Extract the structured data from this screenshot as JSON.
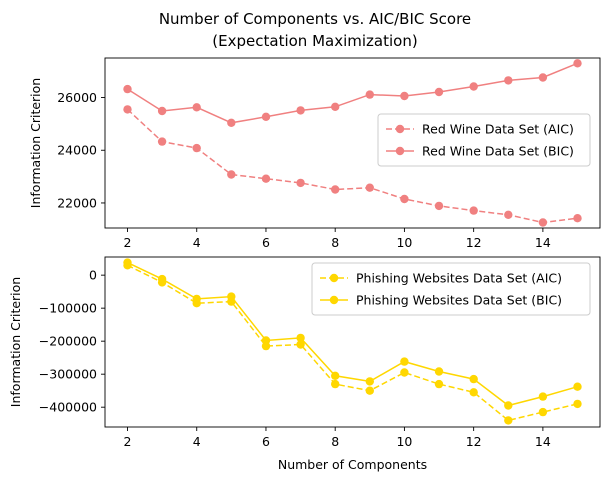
{
  "title": "Number of Components vs. AIC/BIC Score\n(Expectation Maximization)",
  "title_lines": [
    "Number of Components vs. AIC/BIC Score",
    "(Expectation Maximization)"
  ],
  "chart_data": [
    {
      "type": "line",
      "ylabel": "Information Criterion",
      "xlabel": "",
      "xlim": [
        1.35,
        15.65
      ],
      "ylim": [
        21050,
        27500
      ],
      "x_ticks": [
        2,
        4,
        6,
        8,
        10,
        12,
        14
      ],
      "y_ticks": [
        22000,
        24000,
        26000
      ],
      "y_tick_labels": [
        "22000",
        "24000",
        "26000"
      ],
      "legend_position": "center-right",
      "grid": false,
      "x": [
        2,
        3,
        4,
        5,
        6,
        7,
        8,
        9,
        10,
        11,
        12,
        13,
        14,
        15
      ],
      "series": [
        {
          "name": "Red Wine Data Set (AIC)",
          "color": "#f08080",
          "line_style": "dashed",
          "marker": "circle",
          "values": [
            25550,
            24330,
            24080,
            23080,
            22920,
            22760,
            22510,
            22580,
            22150,
            21890,
            21710,
            21550,
            21260,
            21420
          ]
        },
        {
          "name": "Red Wine Data Set (BIC)",
          "color": "#f08080",
          "line_style": "solid",
          "marker": "circle",
          "values": [
            26320,
            25490,
            25630,
            25040,
            25270,
            25510,
            25650,
            26110,
            26060,
            26210,
            26420,
            26650,
            26760,
            27300
          ]
        }
      ]
    },
    {
      "type": "line",
      "ylabel": "Information Criterion",
      "xlabel": "Number of Components",
      "xlim": [
        1.35,
        15.65
      ],
      "ylim": [
        -460000,
        55000
      ],
      "x_ticks": [
        2,
        4,
        6,
        8,
        10,
        12,
        14
      ],
      "y_ticks": [
        -400000,
        -300000,
        -200000,
        -100000,
        0
      ],
      "y_tick_labels": [
        "−400000",
        "−300000",
        "−200000",
        "−100000",
        "0"
      ],
      "legend_position": "top-right",
      "grid": false,
      "x": [
        2,
        3,
        4,
        5,
        6,
        7,
        8,
        9,
        10,
        11,
        12,
        13,
        14,
        15
      ],
      "series": [
        {
          "name": "Phishing Websites Data Set (AIC)",
          "color": "#ffd700",
          "line_style": "dashed",
          "marker": "circle",
          "values": [
            30000,
            -22000,
            -85000,
            -80000,
            -215000,
            -210000,
            -330000,
            -350000,
            -295000,
            -330000,
            -355000,
            -440000,
            -415000,
            -390000
          ]
        },
        {
          "name": "Phishing Websites Data Set (BIC)",
          "color": "#ffd700",
          "line_style": "solid",
          "marker": "circle",
          "values": [
            38000,
            -12000,
            -72000,
            -65000,
            -198000,
            -190000,
            -305000,
            -322000,
            -262000,
            -292000,
            -315000,
            -395000,
            -368000,
            -338000
          ]
        }
      ]
    }
  ]
}
